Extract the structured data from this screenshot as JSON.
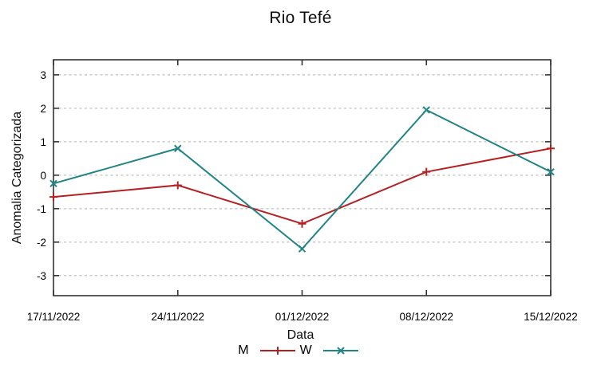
{
  "chart_data": {
    "type": "line",
    "title": "Rio Tefé",
    "xlabel": "Data",
    "ylabel": "Anomalia Categorizada",
    "categories": [
      "17/11/2022",
      "24/11/2022",
      "01/12/2022",
      "08/12/2022",
      "15/12/2022"
    ],
    "series": [
      {
        "name": "M",
        "marker": "plus",
        "color": "#b42121",
        "values": [
          -0.65,
          -0.3,
          -1.45,
          0.1,
          0.8
        ]
      },
      {
        "name": "W",
        "marker": "x",
        "color": "#238484",
        "values": [
          -0.25,
          0.8,
          -2.2,
          1.95,
          0.1
        ]
      }
    ],
    "yticks": [
      3,
      2,
      1,
      0,
      -1,
      -2,
      -3
    ],
    "ylim": [
      -3.6,
      3.45
    ],
    "grid": true,
    "legend_position": "bottom-center"
  },
  "colors": {
    "background": "#ffffff",
    "text": "#000000",
    "grid": "#b0b0b0",
    "border": "#333333"
  }
}
